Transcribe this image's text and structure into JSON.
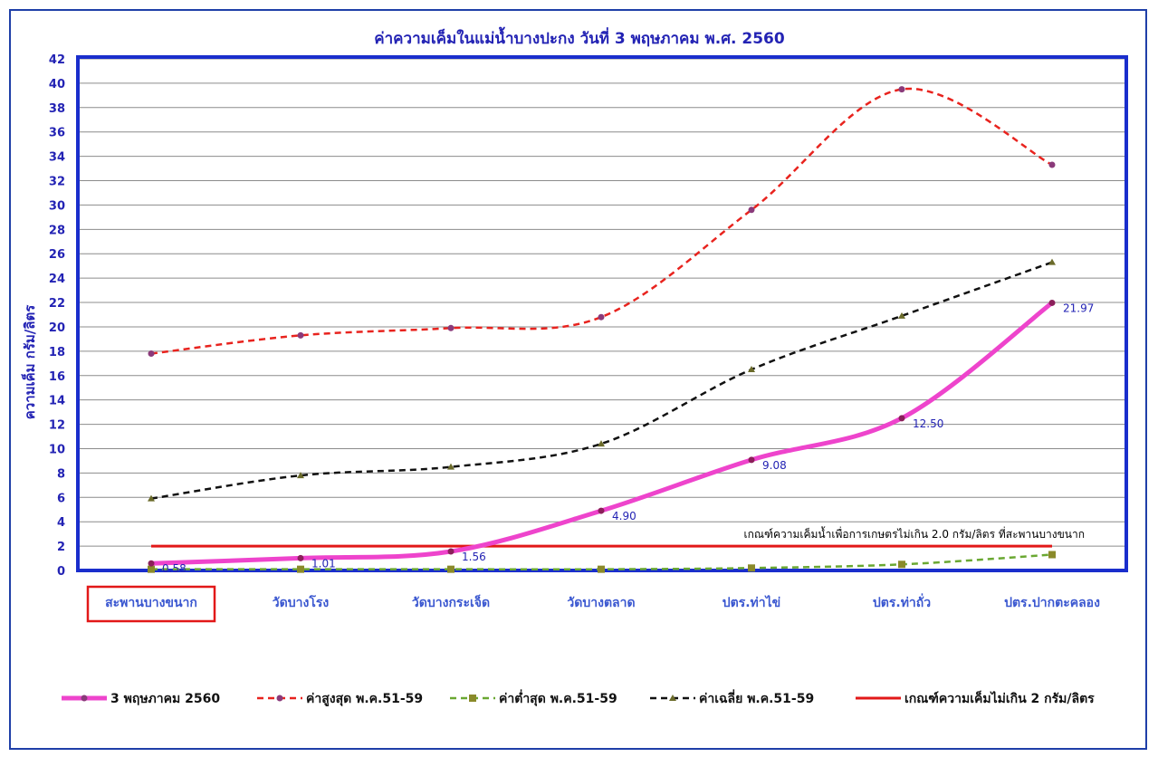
{
  "chart_data": {
    "type": "line",
    "title": "ค่าความเค็มในแม่น้ำบางปะกง วันที่ 3 พฤษภาคม พ.ศ. 2560",
    "ylabel": "ความเค็ม กรัม/ลิตร",
    "xlabel": "",
    "ylim": [
      0,
      42
    ],
    "yticks": [
      0,
      2,
      4,
      6,
      8,
      10,
      12,
      14,
      16,
      18,
      20,
      22,
      24,
      26,
      28,
      30,
      32,
      34,
      36,
      38,
      40,
      42
    ],
    "grid": true,
    "legend_position": "bottom",
    "categories": [
      "สะพานบางขนาก",
      "วัดบางโรง",
      "วัดบางกระเจ็ด",
      "วัดบางตลาด",
      "ปตร.ท่าไข่",
      "ปตร.ท่าถั่ว",
      "ปตร.ปากตะคลอง"
    ],
    "highlighted_category": "สะพานบางขนาก",
    "series": [
      {
        "name": "3 พฤษภาคม 2560",
        "color": "#ee44cc",
        "style": "solid-thick",
        "values": [
          0.58,
          1.01,
          1.56,
          4.9,
          9.08,
          12.5,
          21.97
        ],
        "labels": [
          "0.58",
          "1.01",
          "1.56",
          "4.90",
          "9.08",
          "12.50",
          "21.97"
        ]
      },
      {
        "name": "ค่าสูงสุด พ.ค.51-59",
        "color": "#e8231e",
        "style": "dashed",
        "values": [
          17.8,
          19.3,
          19.9,
          20.8,
          29.6,
          39.5,
          33.3
        ]
      },
      {
        "name": "ค่าต่ำสุด พ.ค.51-59",
        "color": "#6aa832",
        "style": "dashed",
        "values": [
          0.1,
          0.1,
          0.1,
          0.1,
          0.2,
          0.5,
          1.3
        ]
      },
      {
        "name": "ค่าเฉลี่ย  พ.ค.51-59",
        "color": "#111111",
        "style": "dashed",
        "values": [
          5.9,
          7.8,
          8.5,
          10.4,
          16.5,
          20.9,
          25.3
        ]
      },
      {
        "name": "เกณฑ์ความเค็มไม่เกิน 2 กรัม/ลิตร",
        "color": "#e21818",
        "style": "solid",
        "values": [
          2,
          2,
          2,
          2,
          2,
          2,
          2
        ]
      }
    ],
    "annotation": "เกณฑ์ความเค็มน้ำเพื่อการเกษตรไม่เกิน 2.0 กรัม/ลิตร ที่สะพานบางขนาก"
  }
}
